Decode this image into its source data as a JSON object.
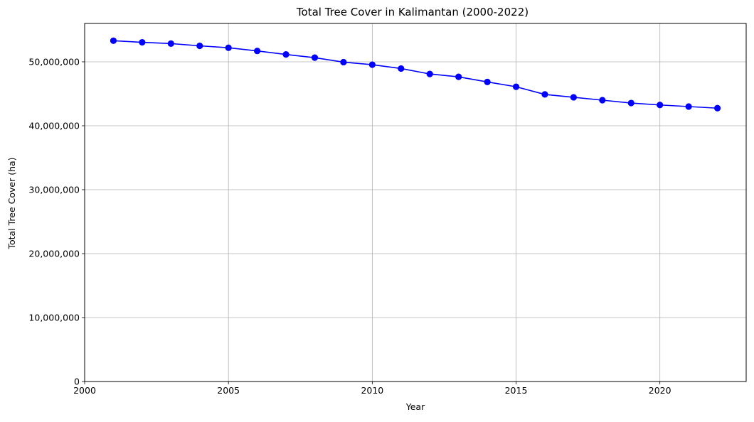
{
  "chart_data": {
    "type": "line",
    "title": "Total Tree Cover in Kalimantan (2000-2022)",
    "xlabel": "Year",
    "ylabel": "Total Tree Cover (ha)",
    "xlim": [
      2000,
      2023
    ],
    "ylim": [
      0,
      56000000
    ],
    "x_ticks": [
      2000,
      2005,
      2010,
      2015,
      2020
    ],
    "x_tick_labels": [
      "2000",
      "2005",
      "2010",
      "2015",
      "2020"
    ],
    "y_ticks": [
      0,
      10000000,
      20000000,
      30000000,
      40000000,
      50000000
    ],
    "y_tick_labels": [
      "0",
      "10,000,000",
      "20,000,000",
      "30,000,000",
      "40,000,000",
      "50,000,000"
    ],
    "grid": true,
    "legend": "none",
    "series": [
      {
        "color": "#0000ff",
        "marker": "circle",
        "x": [
          2001,
          2002,
          2003,
          2004,
          2005,
          2006,
          2007,
          2008,
          2009,
          2010,
          2011,
          2012,
          2013,
          2014,
          2015,
          2016,
          2017,
          2018,
          2019,
          2020,
          2021,
          2022
        ],
        "values": [
          53300000,
          53050000,
          52850000,
          52500000,
          52200000,
          51700000,
          51150000,
          50650000,
          49950000,
          49550000,
          48950000,
          48100000,
          47650000,
          46850000,
          46100000,
          44900000,
          44450000,
          44000000,
          43550000,
          43250000,
          43000000,
          42750000
        ]
      }
    ]
  }
}
